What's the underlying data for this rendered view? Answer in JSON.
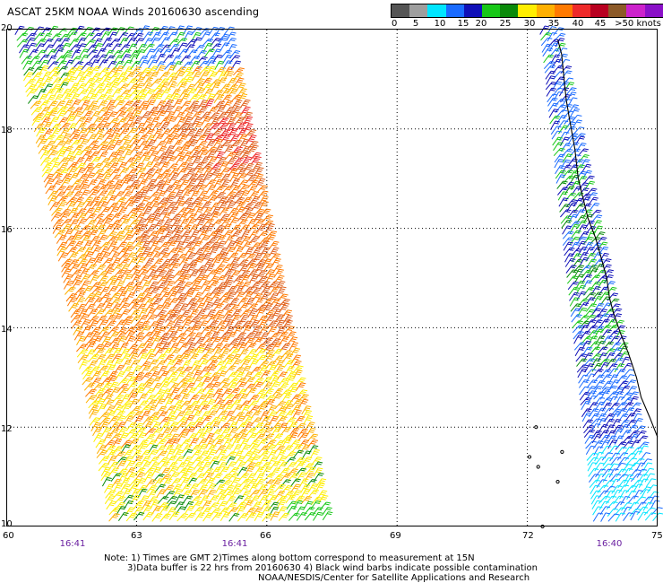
{
  "title": "ASCAT 25KM NOAA Winds 20160630 ascending",
  "legend": {
    "colors": [
      "#555555",
      "#9e9e9e",
      "#00e5ff",
      "#1a6bff",
      "#1010b8",
      "#18c818",
      "#0a8a0a",
      "#ffee00",
      "#ffb000",
      "#ff7a00",
      "#ee2a2a",
      "#b80020",
      "#8c5a28",
      "#cc22cc",
      "#8a10c8"
    ],
    "labels": [
      "0",
      "5",
      "10",
      "15",
      "20",
      "25",
      "30",
      "35",
      "40",
      "45",
      ">50 knots"
    ],
    "unit": "knots"
  },
  "map": {
    "lat_ticks": [
      "20",
      "18",
      "16",
      "14",
      "12",
      "10"
    ],
    "lon_ticks": [
      "60",
      "63",
      "66",
      "69",
      "72",
      "75"
    ],
    "lat_range": [
      10,
      20
    ],
    "lon_range": [
      60,
      75
    ],
    "grid": "dotted",
    "swath_times": [
      "16:41",
      "16:41",
      "16:40"
    ],
    "coastline_color": "#000000"
  },
  "notes": [
    "Note: 1) Times are GMT 2)Times along bottom correspond to measurement at 15N",
    "3)Data buffer is 22 hrs from 20160630 4) Black wind barbs indicate possible contamination",
    "NOAA/NESDIS/Center for Satellite Applications and Research"
  ]
}
